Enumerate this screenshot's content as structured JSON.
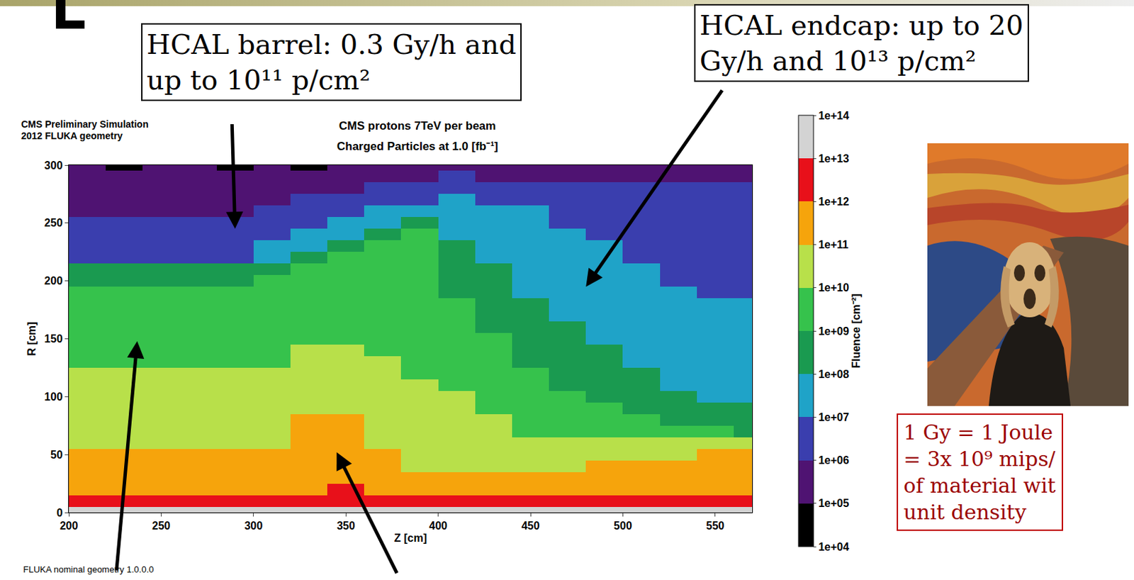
{
  "chart_data": {
    "type": "heatmap",
    "title": "CMS protons 7TeV per beam",
    "subtitle": "Charged Particles at 1.0 [fb⁻¹]",
    "x_label": "Z [cm]",
    "y_label": "R [cm]",
    "x": [
      200,
      220,
      240,
      260,
      280,
      300,
      320,
      340,
      360,
      380,
      400,
      420,
      440,
      460,
      480,
      500,
      520,
      540,
      560,
      570
    ],
    "y": [
      0,
      5,
      15,
      25,
      35,
      45,
      55,
      65,
      75,
      85,
      95,
      105,
      115,
      125,
      135,
      145,
      155,
      165,
      175,
      185,
      195,
      205,
      215,
      225,
      235,
      245,
      255,
      265,
      275,
      285,
      295,
      300
    ],
    "cells": [
      [
        30000000000000.0,
        30000000000000.0,
        30000000000000.0,
        30000000000000.0,
        30000000000000.0,
        30000000000000.0,
        30000000000000.0,
        30000000000000.0,
        30000000000000.0,
        30000000000000.0,
        30000000000000.0,
        30000000000000.0,
        30000000000000.0,
        30000000000000.0,
        30000000000000.0,
        30000000000000.0,
        30000000000000.0,
        30000000000000.0,
        30000000000000.0
      ],
      [
        3000000000000.0,
        3000000000000.0,
        3000000000000.0,
        3000000000000.0,
        3000000000000.0,
        3000000000000.0,
        3000000000000.0,
        3000000000000.0,
        3000000000000.0,
        3000000000000.0,
        3000000000000.0,
        3000000000000.0,
        3000000000000.0,
        3000000000000.0,
        3000000000000.0,
        3000000000000.0,
        3000000000000.0,
        3000000000000.0,
        3000000000000.0
      ],
      [
        300000000000.0,
        300000000000.0,
        300000000000.0,
        300000000000.0,
        300000000000.0,
        300000000000.0,
        300000000000.0,
        3000000000000.0,
        300000000000.0,
        300000000000.0,
        300000000000.0,
        300000000000.0,
        300000000000.0,
        300000000000.0,
        300000000000.0,
        300000000000.0,
        300000000000.0,
        300000000000.0,
        300000000000.0
      ],
      [
        300000000000.0,
        300000000000.0,
        300000000000.0,
        300000000000.0,
        300000000000.0,
        300000000000.0,
        300000000000.0,
        300000000000.0,
        300000000000.0,
        300000000000.0,
        300000000000.0,
        300000000000.0,
        300000000000.0,
        300000000000.0,
        300000000000.0,
        300000000000.0,
        300000000000.0,
        300000000000.0,
        300000000000.0
      ],
      [
        300000000000.0,
        300000000000.0,
        300000000000.0,
        300000000000.0,
        300000000000.0,
        300000000000.0,
        300000000000.0,
        300000000000.0,
        300000000000.0,
        30000000000.0,
        30000000000.0,
        30000000000.0,
        30000000000.0,
        30000000000.0,
        300000000000.0,
        300000000000.0,
        300000000000.0,
        300000000000.0,
        300000000000.0
      ],
      [
        300000000000.0,
        300000000000.0,
        300000000000.0,
        300000000000.0,
        300000000000.0,
        300000000000.0,
        300000000000.0,
        300000000000.0,
        300000000000.0,
        30000000000.0,
        30000000000.0,
        30000000000.0,
        30000000000.0,
        30000000000.0,
        30000000000.0,
        30000000000.0,
        30000000000.0,
        300000000000.0,
        300000000000.0
      ],
      [
        30000000000.0,
        30000000000.0,
        30000000000.0,
        30000000000.0,
        30000000000.0,
        30000000000.0,
        300000000000.0,
        300000000000.0,
        30000000000.0,
        30000000000.0,
        30000000000.0,
        30000000000.0,
        30000000000.0,
        30000000000.0,
        30000000000.0,
        30000000000.0,
        30000000000.0,
        30000000000.0,
        30000000000.0
      ],
      [
        30000000000.0,
        30000000000.0,
        30000000000.0,
        30000000000.0,
        30000000000.0,
        30000000000.0,
        300000000000.0,
        300000000000.0,
        30000000000.0,
        30000000000.0,
        30000000000.0,
        30000000000.0,
        3000000000.0,
        3000000000.0,
        3000000000.0,
        3000000000.0,
        3000000000.0,
        3000000000.0,
        300000000.0
      ],
      [
        30000000000.0,
        30000000000.0,
        30000000000.0,
        30000000000.0,
        30000000000.0,
        30000000000.0,
        300000000000.0,
        300000000000.0,
        30000000000.0,
        30000000000.0,
        30000000000.0,
        30000000000.0,
        3000000000.0,
        3000000000.0,
        3000000000.0,
        3000000000.0,
        300000000.0,
        300000000.0,
        300000000.0
      ],
      [
        30000000000.0,
        30000000000.0,
        30000000000.0,
        30000000000.0,
        30000000000.0,
        30000000000.0,
        30000000000.0,
        30000000000.0,
        30000000000.0,
        30000000000.0,
        30000000000.0,
        3000000000.0,
        3000000000.0,
        3000000000.0,
        3000000000.0,
        300000000.0,
        300000000.0,
        300000000.0,
        300000000.0
      ],
      [
        30000000000.0,
        30000000000.0,
        30000000000.0,
        30000000000.0,
        30000000000.0,
        30000000000.0,
        30000000000.0,
        30000000000.0,
        30000000000.0,
        30000000000.0,
        30000000000.0,
        3000000000.0,
        3000000000.0,
        3000000000.0,
        300000000.0,
        300000000.0,
        300000000.0,
        30000000.0,
        30000000.0
      ],
      [
        30000000000.0,
        30000000000.0,
        30000000000.0,
        30000000000.0,
        30000000000.0,
        30000000000.0,
        30000000000.0,
        30000000000.0,
        30000000000.0,
        30000000000.0,
        3000000000.0,
        3000000000.0,
        3000000000.0,
        300000000.0,
        300000000.0,
        300000000.0,
        30000000.0,
        30000000.0,
        30000000.0
      ],
      [
        30000000000.0,
        30000000000.0,
        30000000000.0,
        30000000000.0,
        30000000000.0,
        30000000000.0,
        30000000000.0,
        30000000000.0,
        30000000000.0,
        3000000000.0,
        3000000000.0,
        3000000000.0,
        3000000000.0,
        300000000.0,
        300000000.0,
        300000000.0,
        30000000.0,
        30000000.0,
        30000000.0
      ],
      [
        3000000000.0,
        3000000000.0,
        3000000000.0,
        3000000000.0,
        3000000000.0,
        3000000000.0,
        30000000000.0,
        30000000000.0,
        30000000000.0,
        3000000000.0,
        3000000000.0,
        3000000000.0,
        300000000.0,
        300000000.0,
        300000000.0,
        30000000.0,
        30000000.0,
        30000000.0,
        30000000.0
      ],
      [
        3000000000.0,
        3000000000.0,
        3000000000.0,
        3000000000.0,
        3000000000.0,
        3000000000.0,
        30000000000.0,
        30000000000.0,
        3000000000.0,
        3000000000.0,
        3000000000.0,
        3000000000.0,
        300000000.0,
        300000000.0,
        300000000.0,
        30000000.0,
        30000000.0,
        30000000.0,
        30000000.0
      ],
      [
        3000000000.0,
        3000000000.0,
        3000000000.0,
        3000000000.0,
        3000000000.0,
        3000000000.0,
        3000000000.0,
        3000000000.0,
        3000000000.0,
        3000000000.0,
        3000000000.0,
        3000000000.0,
        300000000.0,
        300000000.0,
        30000000.0,
        30000000.0,
        30000000.0,
        30000000.0,
        30000000.0
      ],
      [
        3000000000.0,
        3000000000.0,
        3000000000.0,
        3000000000.0,
        3000000000.0,
        3000000000.0,
        3000000000.0,
        3000000000.0,
        3000000000.0,
        3000000000.0,
        3000000000.0,
        300000000.0,
        300000000.0,
        300000000.0,
        30000000.0,
        30000000.0,
        30000000.0,
        30000000.0,
        30000000.0
      ],
      [
        3000000000.0,
        3000000000.0,
        3000000000.0,
        3000000000.0,
        3000000000.0,
        3000000000.0,
        3000000000.0,
        3000000000.0,
        3000000000.0,
        3000000000.0,
        3000000000.0,
        300000000.0,
        300000000.0,
        30000000.0,
        30000000.0,
        30000000.0,
        30000000.0,
        30000000.0,
        30000000.0
      ],
      [
        3000000000.0,
        3000000000.0,
        3000000000.0,
        3000000000.0,
        3000000000.0,
        3000000000.0,
        3000000000.0,
        3000000000.0,
        3000000000.0,
        3000000000.0,
        3000000000.0,
        300000000.0,
        300000000.0,
        30000000.0,
        30000000.0,
        30000000.0,
        30000000.0,
        30000000.0,
        30000000.0
      ],
      [
        3000000000.0,
        3000000000.0,
        3000000000.0,
        3000000000.0,
        3000000000.0,
        3000000000.0,
        3000000000.0,
        3000000000.0,
        3000000000.0,
        3000000000.0,
        300000000.0,
        300000000.0,
        30000000.0,
        30000000.0,
        30000000.0,
        30000000.0,
        30000000.0,
        3000000.0,
        3000000.0
      ],
      [
        300000000.0,
        300000000.0,
        300000000.0,
        300000000.0,
        300000000.0,
        3000000000.0,
        3000000000.0,
        3000000000.0,
        3000000000.0,
        3000000000.0,
        300000000.0,
        300000000.0,
        30000000.0,
        30000000.0,
        30000000.0,
        30000000.0,
        3000000.0,
        3000000.0,
        3000000.0
      ],
      [
        300000000.0,
        300000000.0,
        300000000.0,
        300000000.0,
        300000000.0,
        300000000.0,
        3000000000.0,
        3000000000.0,
        3000000000.0,
        3000000000.0,
        300000000.0,
        300000000.0,
        30000000.0,
        30000000.0,
        30000000.0,
        30000000.0,
        3000000.0,
        3000000.0,
        3000000.0
      ],
      [
        3000000.0,
        3000000.0,
        3000000.0,
        3000000.0,
        3000000.0,
        30000000.0,
        300000000.0,
        3000000000.0,
        3000000000.0,
        3000000000.0,
        300000000.0,
        30000000.0,
        30000000.0,
        30000000.0,
        30000000.0,
        3000000.0,
        3000000.0,
        3000000.0,
        3000000.0
      ],
      [
        3000000.0,
        3000000.0,
        3000000.0,
        3000000.0,
        3000000.0,
        30000000.0,
        30000000.0,
        300000000.0,
        3000000000.0,
        3000000000.0,
        300000000.0,
        30000000.0,
        30000000.0,
        30000000.0,
        30000000.0,
        3000000.0,
        3000000.0,
        3000000.0,
        3000000.0
      ],
      [
        3000000.0,
        3000000.0,
        3000000.0,
        3000000.0,
        3000000.0,
        3000000.0,
        30000000.0,
        30000000.0,
        300000000.0,
        3000000000.0,
        30000000.0,
        30000000.0,
        30000000.0,
        30000000.0,
        3000000.0,
        3000000.0,
        3000000.0,
        3000000.0,
        3000000.0
      ],
      [
        3000000.0,
        3000000.0,
        3000000.0,
        3000000.0,
        3000000.0,
        3000000.0,
        3000000.0,
        30000000.0,
        30000000.0,
        300000000.0,
        30000000.0,
        30000000.0,
        30000000.0,
        3000000.0,
        3000000.0,
        3000000.0,
        3000000.0,
        3000000.0,
        3000000.0
      ],
      [
        300000.0,
        300000.0,
        300000.0,
        300000.0,
        300000.0,
        3000000.0,
        3000000.0,
        3000000.0,
        30000000.0,
        30000000.0,
        30000000.0,
        30000000.0,
        30000000.0,
        3000000.0,
        3000000.0,
        3000000.0,
        3000000.0,
        3000000.0,
        3000000.0
      ],
      [
        300000.0,
        300000.0,
        300000.0,
        300000.0,
        300000.0,
        300000.0,
        3000000.0,
        3000000.0,
        3000000.0,
        3000000.0,
        30000000.0,
        3000000.0,
        3000000.0,
        3000000.0,
        3000000.0,
        3000000.0,
        3000000.0,
        3000000.0,
        3000000.0
      ],
      [
        300000.0,
        300000.0,
        300000.0,
        300000.0,
        300000.0,
        300000.0,
        300000.0,
        300000.0,
        3000000.0,
        3000000.0,
        3000000.0,
        3000000.0,
        3000000.0,
        3000000.0,
        3000000.0,
        3000000.0,
        3000000.0,
        3000000.0,
        3000000.0
      ],
      [
        300000.0,
        300000.0,
        300000.0,
        300000.0,
        300000.0,
        300000.0,
        300000.0,
        300000.0,
        300000.0,
        300000.0,
        3000000.0,
        300000.0,
        300000.0,
        300000.0,
        300000.0,
        300000.0,
        300000.0,
        300000.0,
        300000.0
      ],
      [
        300000.0,
        30000.0,
        300000.0,
        300000.0,
        30000.0,
        300000.0,
        30000.0,
        300000.0,
        300000.0,
        300000.0,
        300000.0,
        300000.0,
        300000.0,
        300000.0,
        300000.0,
        300000.0,
        300000.0,
        300000.0,
        300000.0
      ]
    ],
    "xlim": [
      200,
      570
    ],
    "xticks": [
      200,
      250,
      300,
      350,
      400,
      450,
      500,
      550
    ],
    "ylim": [
      0,
      300
    ],
    "yticks": [
      0,
      50,
      100,
      150,
      200,
      250,
      300
    ],
    "log": true,
    "colorbar": {
      "title": "Fluence [cm⁻²]",
      "range": [
        10000.0,
        100000000000000.0
      ],
      "ticks": [
        {
          "value": 10000.0,
          "label": "1e+04"
        },
        {
          "value": 100000.0,
          "label": "1e+05"
        },
        {
          "value": 1000000.0,
          "label": "1e+06"
        },
        {
          "value": 10000000.0,
          "label": "1e+07"
        },
        {
          "value": 100000000.0,
          "label": "1e+08"
        },
        {
          "value": 1000000000.0,
          "label": "1e+09"
        },
        {
          "value": 10000000000.0,
          "label": "1e+10"
        },
        {
          "value": 100000000000.0,
          "label": "1e+11"
        },
        {
          "value": 1000000000000.0,
          "label": "1e+12"
        },
        {
          "value": 10000000000000.0,
          "label": "1e+13"
        },
        {
          "value": 100000000000000.0,
          "label": "1e+14"
        }
      ],
      "colors": [
        "#000000",
        "#4f1372",
        "#3a3eae",
        "#1fa3c8",
        "#1a9a50",
        "#36c24c",
        "#b8e04a",
        "#f6a40c",
        "#e8101a",
        "#d3d3d3"
      ]
    },
    "annotations": {
      "top_left": [
        "CMS Preliminary Simulation",
        "2012 FLUKA geometry"
      ],
      "footer": "FLUKA nominal geometry 1.0.0.0",
      "barrel": [
        "HCAL barrel: 0.3 Gy/h and",
        "up to 10¹¹ p/cm²"
      ],
      "endcap": [
        "HCAL endcap: up to 20",
        "Gy/h and 10¹³ p/cm²"
      ],
      "note": [
        "1 Gy = 1 Joule",
        "= 3x 10⁹ mips/",
        "of material wit",
        "unit density"
      ]
    }
  }
}
